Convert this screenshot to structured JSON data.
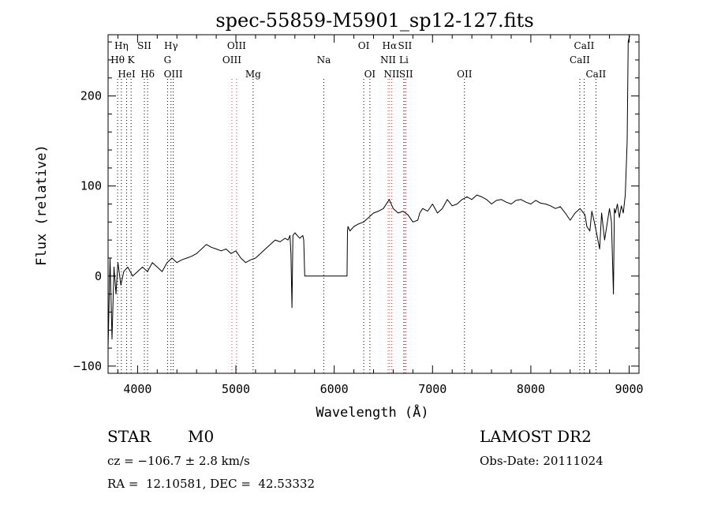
{
  "chart_data": {
    "type": "line",
    "title": "spec-55859-M5901_sp12-127.fits",
    "xlabel": "Wavelength (Å)",
    "ylabel": "Flux (relative)",
    "xlim": [
      3700,
      9100
    ],
    "ylim": [
      -108,
      268
    ],
    "xticks": [
      4000,
      5000,
      6000,
      7000,
      8000,
      9000
    ],
    "yticks": [
      -100,
      0,
      100,
      200
    ],
    "tick_labels": {
      "x": [
        "4000",
        "5000",
        "6000",
        "7000",
        "8000",
        "9000"
      ],
      "y": [
        "−100",
        "0",
        "100",
        "200"
      ]
    },
    "series": [
      {
        "color": "#000000",
        "x": [
          3700,
          3720,
          3740,
          3760,
          3780,
          3800,
          3830,
          3860,
          3900,
          3950,
          4000,
          4050,
          4100,
          4150,
          4200,
          4250,
          4300,
          4350,
          4400,
          4450,
          4500,
          4550,
          4600,
          4650,
          4700,
          4750,
          4800,
          4850,
          4900,
          4950,
          5000,
          5050,
          5100,
          5150,
          5200,
          5250,
          5300,
          5350,
          5400,
          5450,
          5500,
          5530,
          5550,
          5560,
          5570,
          5580,
          5600,
          5650,
          5680,
          5690,
          5700,
          6130,
          6135,
          6140,
          6160,
          6200,
          6250,
          6300,
          6350,
          6400,
          6450,
          6500,
          6560,
          6600,
          6650,
          6700,
          6750,
          6800,
          6850,
          6870,
          6900,
          6950,
          7000,
          7050,
          7100,
          7150,
          7200,
          7250,
          7300,
          7350,
          7400,
          7450,
          7500,
          7550,
          7600,
          7650,
          7700,
          7750,
          7800,
          7850,
          7900,
          7950,
          8000,
          8050,
          8100,
          8150,
          8200,
          8250,
          8300,
          8350,
          8400,
          8450,
          8500,
          8550,
          8570,
          8600,
          8620,
          8650,
          8700,
          8720,
          8750,
          8800,
          8820,
          8840,
          8850,
          8860,
          8880,
          8900,
          8920,
          8940,
          8960,
          8980,
          8990,
          9000,
          9005,
          9010
        ],
        "y": [
          -80,
          20,
          -70,
          10,
          -20,
          15,
          -10,
          5,
          10,
          0,
          5,
          10,
          5,
          15,
          10,
          5,
          15,
          20,
          15,
          18,
          20,
          22,
          25,
          30,
          35,
          32,
          30,
          28,
          30,
          25,
          28,
          20,
          15,
          18,
          20,
          25,
          30,
          35,
          40,
          38,
          42,
          40,
          45,
          25,
          -35,
          45,
          48,
          42,
          45,
          40,
          0,
          0,
          50,
          55,
          50,
          55,
          58,
          60,
          65,
          70,
          72,
          75,
          85,
          75,
          70,
          72,
          68,
          60,
          62,
          70,
          75,
          72,
          80,
          70,
          75,
          85,
          78,
          80,
          85,
          88,
          85,
          90,
          88,
          85,
          80,
          84,
          85,
          82,
          80,
          84,
          85,
          82,
          80,
          84,
          81,
          80,
          78,
          75,
          77,
          70,
          62,
          70,
          75,
          68,
          55,
          50,
          72,
          58,
          30,
          70,
          40,
          75,
          60,
          -20,
          75,
          70,
          80,
          65,
          78,
          70,
          90,
          150,
          260,
          265,
          266,
          266
        ]
      }
    ],
    "line_markers": [
      {
        "label": "Hη",
        "wavelength": 3835,
        "row": 0,
        "color": "#000000"
      },
      {
        "label": "Hθ",
        "wavelength": 3797,
        "row": 1,
        "color": "#000000"
      },
      {
        "label": "K",
        "wavelength": 3934,
        "row": 1,
        "color": "#000000"
      },
      {
        "label": "HeI",
        "wavelength": 3889,
        "row": 2,
        "color": "#000000"
      },
      {
        "label": "SII",
        "wavelength": 4069,
        "row": 0,
        "color": "#000000"
      },
      {
        "label": "Hδ",
        "wavelength": 4102,
        "row": 2,
        "color": "#000000"
      },
      {
        "label": "Hγ",
        "wavelength": 4340,
        "row": 0,
        "color": "#000000"
      },
      {
        "label": "G",
        "wavelength": 4305,
        "row": 1,
        "color": "#000000"
      },
      {
        "label": "OIII",
        "wavelength": 4363,
        "row": 2,
        "color": "#000000"
      },
      {
        "label": "OIII",
        "wavelength": 5007,
        "row": 0,
        "color": "#e8352e"
      },
      {
        "label": "OIII",
        "wavelength": 4959,
        "row": 1,
        "color": "#e8352e"
      },
      {
        "label": "Mg",
        "wavelength": 5175,
        "row": 2,
        "color": "#000000"
      },
      {
        "label": "Na",
        "wavelength": 5894,
        "row": 1,
        "color": "#000000"
      },
      {
        "label": "OI",
        "wavelength": 6300,
        "row": 0,
        "color": "#000000"
      },
      {
        "label": "OI",
        "wavelength": 6363,
        "row": 2,
        "color": "#000000"
      },
      {
        "label": "Hα",
        "wavelength": 6563,
        "row": 0,
        "color": "#e8352e"
      },
      {
        "label": "SII",
        "wavelength": 6720,
        "row": 0,
        "color": "#e8352e"
      },
      {
        "label": "NII",
        "wavelength": 6548,
        "row": 1,
        "color": "#e8352e"
      },
      {
        "label": "Li",
        "wavelength": 6708,
        "row": 1,
        "color": "#000000"
      },
      {
        "label": "NII",
        "wavelength": 6584,
        "row": 2,
        "color": "#e8352e"
      },
      {
        "label": "SII",
        "wavelength": 6731,
        "row": 2,
        "color": "#e8352e"
      },
      {
        "label": "OII",
        "wavelength": 7325,
        "row": 2,
        "color": "#000000"
      },
      {
        "label": "CaII",
        "wavelength": 8542,
        "row": 0,
        "color": "#000000"
      },
      {
        "label": "CaII",
        "wavelength": 8498,
        "row": 1,
        "color": "#000000"
      },
      {
        "label": "CaII",
        "wavelength": 8662,
        "row": 2,
        "color": "#000000"
      }
    ]
  },
  "info": {
    "class_label": "STAR",
    "subclass_label": "M0",
    "survey_label": "LAMOST DR2",
    "redshift_text": "cz = −106.7 ± 2.8 km/s",
    "obs_date_text": "Obs-Date: 20111024",
    "coords_text": "RA =  12.10581, DEC =  42.53332"
  }
}
